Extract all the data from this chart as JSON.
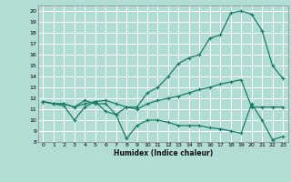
{
  "xlabel": "Humidex (Indice chaleur)",
  "background_color": "#b2ddd4",
  "grid_color": "#ffffff",
  "line_color": "#1a7a6a",
  "xlim": [
    -0.5,
    23.5
  ],
  "ylim": [
    8,
    20.5
  ],
  "yticks": [
    8,
    9,
    10,
    11,
    12,
    13,
    14,
    15,
    16,
    17,
    18,
    19,
    20
  ],
  "xticks": [
    0,
    1,
    2,
    3,
    4,
    5,
    6,
    7,
    8,
    9,
    10,
    11,
    12,
    13,
    14,
    15,
    16,
    17,
    18,
    19,
    20,
    21,
    22,
    23
  ],
  "line1_x": [
    0,
    1,
    2,
    3,
    4,
    5,
    6,
    7,
    8,
    9,
    10,
    11,
    12,
    13,
    14,
    15,
    16,
    17,
    18,
    19,
    20,
    21,
    22,
    23
  ],
  "line1_y": [
    11.7,
    11.5,
    11.5,
    11.2,
    11.8,
    11.5,
    11.5,
    10.5,
    11.2,
    11.2,
    12.5,
    13.0,
    14.0,
    15.2,
    15.7,
    16.0,
    17.5,
    17.8,
    19.8,
    20.0,
    19.7,
    18.2,
    15.0,
    13.8
  ],
  "line2_x": [
    0,
    1,
    2,
    3,
    4,
    5,
    6,
    7,
    8,
    9,
    10,
    11,
    12,
    13,
    14,
    15,
    16,
    17,
    18,
    19,
    20,
    21,
    22,
    23
  ],
  "line2_y": [
    11.7,
    11.5,
    11.5,
    11.2,
    11.5,
    11.7,
    11.8,
    11.5,
    11.2,
    11.0,
    11.5,
    11.8,
    12.0,
    12.2,
    12.5,
    12.8,
    13.0,
    13.3,
    13.5,
    13.7,
    11.2,
    11.2,
    11.2,
    11.2
  ],
  "line3_x": [
    0,
    1,
    2,
    3,
    4,
    5,
    6,
    7,
    8,
    9,
    10,
    11,
    12,
    13,
    14,
    15,
    16,
    17,
    18,
    19,
    20,
    21,
    22,
    23
  ],
  "line3_y": [
    11.7,
    11.5,
    11.3,
    10.0,
    11.2,
    11.7,
    10.8,
    10.5,
    8.3,
    9.5,
    10.0,
    10.0,
    9.8,
    9.5,
    9.5,
    9.5,
    9.3,
    9.2,
    9.0,
    8.8,
    11.5,
    10.0,
    8.2,
    8.5
  ]
}
